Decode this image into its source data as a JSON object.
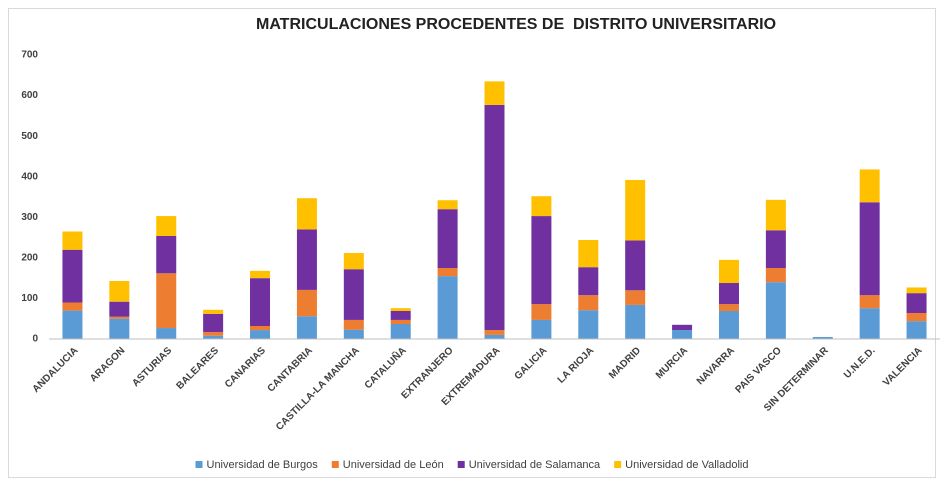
{
  "chart_data": {
    "type": "stacked_bar",
    "title": "MATRICULACIONES PROCEDENTES DE  DISTRITO UNIVERSITARIO",
    "categories": [
      "ANDALUCIA",
      "ARAGON",
      "ASTURIAS",
      "BALEARES",
      "CANARIAS",
      "CANTABRIA",
      "CASTILLA-LA MANCHA",
      "CATALUÑA",
      "EXTRANJERO",
      "EXTREMADURA",
      "GALICIA",
      "LA RIOJA",
      "MADRID",
      "MURCIA",
      "NAVARRA",
      "PAIS VASCO",
      "SIN DETERMINAR",
      "U.N.E.D.",
      "VALENCIA"
    ],
    "series": [
      {
        "name": "Universidad de Burgos",
        "color": "#5b9bd5",
        "values": [
          70,
          50,
          27,
          8,
          22,
          56,
          23,
          37,
          155,
          10,
          47,
          71,
          84,
          22,
          69,
          140,
          5,
          76,
          44
        ]
      },
      {
        "name": "Universidad de León",
        "color": "#ed7d31",
        "values": [
          20,
          5,
          135,
          9,
          10,
          65,
          24,
          10,
          20,
          12,
          39,
          37,
          36,
          0,
          17,
          35,
          0,
          32,
          20
        ]
      },
      {
        "name": "Universidad de Salamanca",
        "color": "#7030a0",
        "values": [
          130,
          37,
          92,
          45,
          118,
          149,
          125,
          22,
          145,
          555,
          217,
          69,
          123,
          13,
          52,
          93,
          0,
          229,
          49
        ]
      },
      {
        "name": "Universidad de Valladolid",
        "color": "#ffc000",
        "values": [
          45,
          51,
          49,
          10,
          18,
          77,
          40,
          7,
          22,
          58,
          49,
          67,
          149,
          0,
          57,
          75,
          0,
          81,
          14
        ]
      }
    ],
    "ylim": [
      0,
      700
    ],
    "yticks": [
      0,
      100,
      200,
      300,
      400,
      500,
      600,
      700
    ],
    "grid": false,
    "legend": "bottom"
  }
}
